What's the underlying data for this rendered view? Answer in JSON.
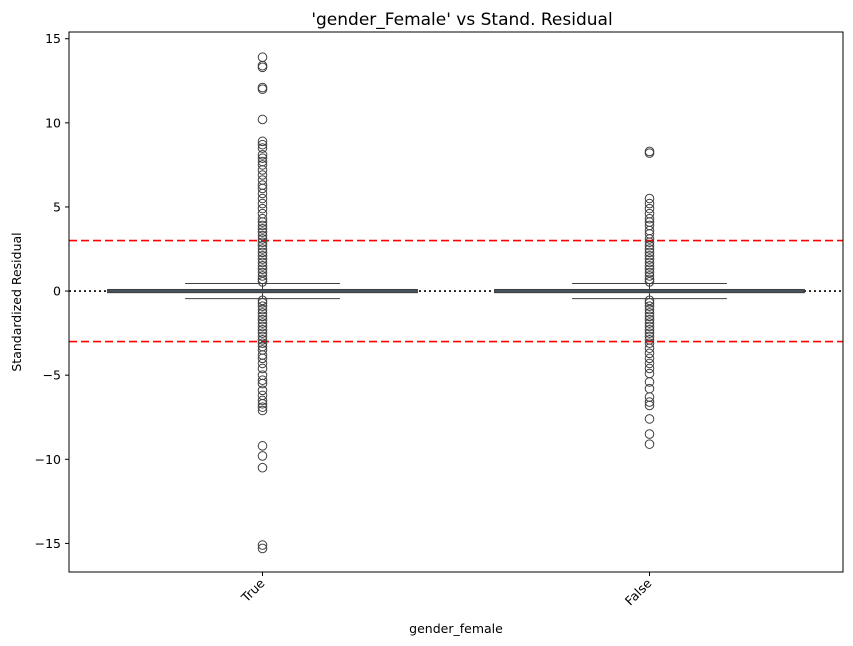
{
  "chart_data": {
    "type": "box",
    "title": "'gender_Female' vs Stand. Residual",
    "xlabel": "gender_female",
    "ylabel": "Standardized Residual",
    "categories": [
      "True",
      "False"
    ],
    "ylim": [
      -16.7,
      15.4
    ],
    "yticks": [
      -15,
      -10,
      -5,
      0,
      5,
      10,
      15
    ],
    "ytick_labels": [
      "−15",
      "−10",
      "−5",
      "0",
      "5",
      "10",
      "15"
    ],
    "boxes": [
      {
        "category": "True",
        "q1": -0.05,
        "median": 0.0,
        "q3": 0.05,
        "whisker_low": -0.45,
        "whisker_high": 0.45,
        "outliers": [
          13.9,
          13.4,
          13.3,
          12.1,
          12.0,
          10.2,
          8.9,
          8.7,
          8.5,
          8.1,
          7.9,
          7.7,
          7.5,
          7.2,
          6.9,
          6.6,
          6.3,
          6.1,
          5.8,
          5.5,
          5.2,
          4.9,
          4.6,
          4.3,
          4.1,
          3.9,
          3.7,
          3.5,
          3.3,
          3.1,
          2.9,
          2.7,
          2.5,
          2.3,
          2.1,
          1.9,
          1.7,
          1.5,
          1.3,
          1.1,
          0.9,
          0.7,
          0.55,
          -0.55,
          -0.7,
          -0.9,
          -1.1,
          -1.3,
          -1.5,
          -1.7,
          -1.9,
          -2.1,
          -2.3,
          -2.5,
          -2.7,
          -2.9,
          -3.1,
          -3.3,
          -3.5,
          -3.8,
          -4.0,
          -4.3,
          -4.6,
          -5.0,
          -5.3,
          -5.5,
          -5.9,
          -6.2,
          -6.5,
          -6.7,
          -6.9,
          -7.1,
          -9.2,
          -9.8,
          -10.5,
          -15.1,
          -15.3
        ]
      },
      {
        "category": "False",
        "q1": -0.05,
        "median": 0.0,
        "q3": 0.05,
        "whisker_low": -0.45,
        "whisker_high": 0.45,
        "outliers": [
          8.3,
          8.2,
          5.5,
          5.2,
          4.9,
          4.6,
          4.3,
          4.1,
          3.9,
          3.6,
          3.4,
          3.1,
          2.9,
          2.7,
          2.5,
          2.3,
          2.1,
          1.9,
          1.7,
          1.5,
          1.3,
          1.1,
          0.9,
          0.7,
          0.55,
          -0.55,
          -0.7,
          -0.9,
          -1.1,
          -1.3,
          -1.5,
          -1.7,
          -1.9,
          -2.1,
          -2.3,
          -2.5,
          -2.7,
          -2.9,
          -3.1,
          -3.4,
          -3.7,
          -4.0,
          -4.3,
          -4.6,
          -4.9,
          -5.4,
          -5.8,
          -6.3,
          -6.6,
          -6.8,
          -7.6,
          -8.5,
          -9.1
        ]
      }
    ],
    "reference_lines": [
      {
        "y": 3,
        "style": "dashed",
        "color": "#ff0000"
      },
      {
        "y": -3,
        "style": "dashed",
        "color": "#ff0000"
      },
      {
        "y": 0,
        "style": "dotted",
        "color": "#000000"
      }
    ],
    "box_color": "#4f7d9e",
    "grid": false
  }
}
